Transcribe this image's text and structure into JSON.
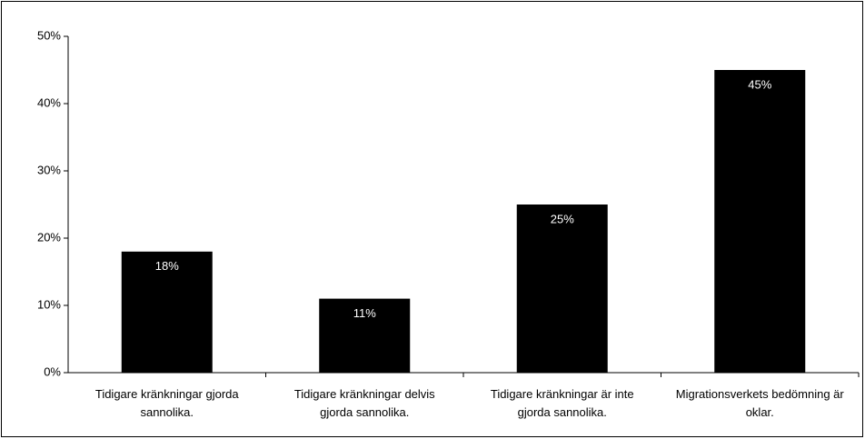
{
  "chart_data": {
    "type": "bar",
    "categories": [
      "Tidigare kränkningar gjorda sannolika.",
      "Tidigare kränkningar delvis gjorda sannolika.",
      "Tidigare kränkningar är inte gjorda sannolika.",
      "Migrationsverkets bedömning är oklar."
    ],
    "values": [
      18,
      11,
      25,
      45
    ],
    "value_labels": [
      "18%",
      "11%",
      "25%",
      "45%"
    ],
    "color": "#000000",
    "ylim": [
      0,
      50
    ],
    "yticks": [
      {
        "value": 0,
        "label": "0%"
      },
      {
        "value": 10,
        "label": "10%"
      },
      {
        "value": 20,
        "label": "20%"
      },
      {
        "value": 30,
        "label": "30%"
      },
      {
        "value": 40,
        "label": "40%"
      },
      {
        "value": 50,
        "label": "50%"
      }
    ],
    "grid": false
  }
}
